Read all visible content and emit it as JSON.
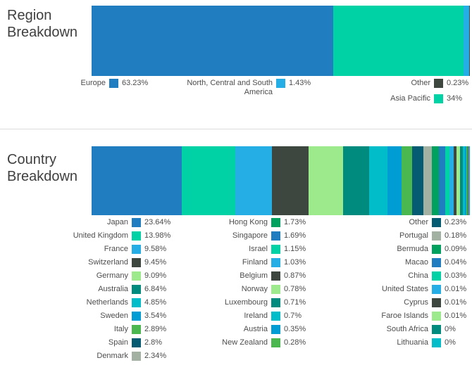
{
  "chart_data": [
    {
      "type": "bar",
      "variant": "horizontal-stacked-percentage",
      "title": "Region Breakdown",
      "unit": "%",
      "legend_position": "bottom",
      "categories": [
        "Europe",
        "Asia Pacific",
        "North, Central and South America",
        "Other"
      ],
      "values": [
        63.23,
        34,
        1.43,
        0.23
      ],
      "value_labels": [
        "63.23%",
        "34%",
        "1.43%",
        "0.23%"
      ],
      "colors": [
        "#1f7dc0",
        "#00d2a6",
        "#25aee6",
        "#3d473f"
      ],
      "legend_columns": [
        [
          0
        ],
        [
          2
        ],
        [
          3,
          1
        ]
      ]
    },
    {
      "type": "bar",
      "variant": "horizontal-stacked-percentage",
      "title": "Country Breakdown",
      "unit": "%",
      "legend_position": "bottom",
      "categories": [
        "Japan",
        "United Kingdom",
        "France",
        "Switzerland",
        "Germany",
        "Australia",
        "Netherlands",
        "Sweden",
        "Italy",
        "Spain",
        "Denmark",
        "Hong Kong",
        "Singapore",
        "Israel",
        "Finland",
        "Belgium",
        "Norway",
        "Luxembourg",
        "Ireland",
        "Austria",
        "New Zealand",
        "Other",
        "Portugal",
        "Bermuda",
        "Macao",
        "China",
        "United States",
        "Cyprus",
        "Faroe Islands",
        "South Africa",
        "Lithuania"
      ],
      "values": [
        23.64,
        13.98,
        9.58,
        9.45,
        9.09,
        6.84,
        4.85,
        3.54,
        2.89,
        2.8,
        2.34,
        1.73,
        1.69,
        1.15,
        1.03,
        0.87,
        0.78,
        0.71,
        0.7,
        0.35,
        0.28,
        0.23,
        0.18,
        0.09,
        0.04,
        0.03,
        0.01,
        0.01,
        0.01,
        0,
        0
      ],
      "value_labels": [
        "23.64%",
        "13.98%",
        "9.58%",
        "9.45%",
        "9.09%",
        "6.84%",
        "4.85%",
        "3.54%",
        "2.89%",
        "2.8%",
        "2.34%",
        "1.73%",
        "1.69%",
        "1.15%",
        "1.03%",
        "0.87%",
        "0.78%",
        "0.71%",
        "0.7%",
        "0.35%",
        "0.28%",
        "0.23%",
        "0.18%",
        "0.09%",
        "0.04%",
        "0.03%",
        "0.01%",
        "0.01%",
        "0.01%",
        "0%",
        "0%"
      ],
      "colors": [
        "#1f7dc0",
        "#00d2a6",
        "#25aee6",
        "#3d473f",
        "#9cea8c",
        "#008b7f",
        "#00bdc9",
        "#009dd5",
        "#4ab84e",
        "#055c72",
        "#a3b1a3",
        "#00a05e",
        "#1f7dc0",
        "#00d2a6",
        "#25aee6",
        "#3d473f",
        "#9cea8c",
        "#008b7f",
        "#00bdc9",
        "#009dd5",
        "#4ab84e",
        "#055c72",
        "#a3b1a3",
        "#00a05e",
        "#1f7dc0",
        "#00d2a6",
        "#25aee6",
        "#3d473f",
        "#9cea8c",
        "#008b7f",
        "#00bdc9"
      ],
      "legend_columns": [
        [
          0,
          1,
          2,
          3,
          4,
          5,
          6,
          7,
          8,
          9,
          10
        ],
        [
          11,
          12,
          13,
          14,
          15,
          16,
          17,
          18,
          19,
          20
        ],
        [
          21,
          22,
          23,
          24,
          25,
          26,
          27,
          28,
          29,
          30
        ]
      ]
    }
  ],
  "styles": {
    "divider_color": "#dcdcdc",
    "title_color": "#3f3f3f",
    "legend_text_color": "#4d4d4d"
  }
}
